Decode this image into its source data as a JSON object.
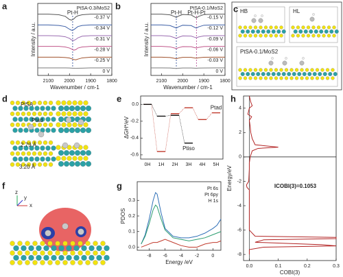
{
  "panel_labels": [
    "a",
    "b",
    "c",
    "d",
    "e",
    "f",
    "g",
    "h"
  ],
  "chart_data": [
    {
      "type": "line",
      "title": "PtSA-0.3/MoS2",
      "xlabel": "Wavenumber / cm-1",
      "ylabel": "Intensity / a.u.",
      "xlim": [
        2150,
        1800
      ],
      "xticks": [
        2100,
        2000,
        1900,
        1800
      ],
      "ylim": [
        0.3,
        7.0
      ],
      "annotations": [
        {
          "text": "Pt-H",
          "x": 1985
        }
      ],
      "x": [
        2150,
        2100,
        2050,
        2020,
        2000,
        1990,
        1980,
        1970,
        1960,
        1940,
        1900,
        1850,
        1800
      ],
      "series": [
        {
          "name": "-0.37 V",
          "color": "#555555",
          "values": [
            6.0,
            6.0,
            5.95,
            5.8,
            5.5,
            5.45,
            5.55,
            5.75,
            5.85,
            5.95,
            6.0,
            6.0,
            6.0
          ]
        },
        {
          "name": "-0.34 V",
          "color": "#3d5fa6",
          "values": [
            5.0,
            5.0,
            4.95,
            4.85,
            4.6,
            4.5,
            4.55,
            4.7,
            4.85,
            4.95,
            5.0,
            5.0,
            5.0
          ]
        },
        {
          "name": "-0.31 V",
          "color": "#9a6bb0",
          "values": [
            4.0,
            4.0,
            3.98,
            3.9,
            3.75,
            3.6,
            3.55,
            3.65,
            3.8,
            3.95,
            4.0,
            4.0,
            4.0
          ]
        },
        {
          "name": "-0.28 V",
          "color": "#c0568a",
          "values": [
            3.0,
            3.0,
            3.0,
            2.95,
            2.85,
            2.75,
            2.65,
            2.7,
            2.85,
            2.95,
            3.0,
            3.0,
            3.0
          ]
        },
        {
          "name": "-0.25 V",
          "color": "#a0522d",
          "values": [
            2.0,
            2.0,
            2.0,
            1.97,
            1.92,
            1.85,
            1.78,
            1.75,
            1.82,
            1.93,
            2.0,
            2.0,
            2.0
          ]
        },
        {
          "name": "0 V",
          "color": "#7a7a7a",
          "values": [
            1.0,
            1.0,
            1.0,
            1.0,
            0.99,
            0.98,
            0.97,
            0.96,
            0.97,
            0.98,
            1.0,
            1.0,
            1.0
          ]
        }
      ]
    },
    {
      "type": "line",
      "title": "PtSA-0.1/MoS2",
      "xlabel": "Wavenumber / cm-1",
      "ylabel": "Intensity / a.u.",
      "xlim": [
        2150,
        1800
      ],
      "xticks": [
        2100,
        2000,
        1900,
        1800
      ],
      "ylim": [
        0.3,
        7.0
      ],
      "annotations": [
        {
          "text": "Pt-H",
          "x": 2030
        },
        {
          "text": "Pt-H-Pt",
          "x": 1935
        }
      ],
      "x": [
        2150,
        2100,
        2060,
        2040,
        2030,
        2020,
        2000,
        1960,
        1945,
        1935,
        1925,
        1900,
        1850,
        1800
      ],
      "series": [
        {
          "name": "-0.15 V",
          "color": "#555555",
          "values": [
            6,
            6,
            5.94,
            5.79,
            5.7,
            5.82,
            5.97,
            5.93,
            5.755,
            5.65,
            5.79,
            5.965,
            6,
            6
          ]
        },
        {
          "name": "-0.12 V",
          "color": "#3d5fa6",
          "values": [
            5,
            5,
            4.94,
            4.79,
            4.7,
            4.82,
            4.97,
            4.94,
            4.79,
            4.7,
            4.82,
            4.97,
            5,
            5
          ]
        },
        {
          "name": "-0.09 V",
          "color": "#9a6bb0",
          "values": [
            4,
            4,
            3.95,
            3.825,
            3.75,
            3.85,
            3.975,
            3.96,
            3.86,
            3.8,
            3.88,
            3.98,
            4,
            4
          ]
        },
        {
          "name": "-0.06 V",
          "color": "#c0568a",
          "values": [
            3,
            3,
            2.96,
            2.86,
            2.8,
            2.88,
            2.98,
            2.97,
            2.895,
            2.85,
            2.91,
            2.985,
            3,
            3
          ]
        },
        {
          "name": "-0.03 V",
          "color": "#a0522d",
          "values": [
            2,
            2,
            1.97,
            1.895,
            1.85,
            1.91,
            1.985,
            1.98,
            1.93,
            1.9,
            1.94,
            1.99,
            2,
            2
          ]
        },
        {
          "name": "0 V",
          "color": "#7a7a7a",
          "values": [
            1,
            1,
            0.99,
            0.965,
            0.95,
            0.97,
            0.995,
            0.994,
            0.979,
            0.97,
            0.982,
            0.997,
            1,
            1
          ]
        }
      ]
    },
    {
      "type": "energy",
      "ylabel": "ΔGH*/eV",
      "categories": [
        "0H",
        "1H",
        "2H",
        "3H",
        "4H",
        "5H"
      ],
      "ylim": [
        -0.65,
        0.1
      ],
      "yticks": [
        {
          "value": 0,
          "label": "0.0"
        },
        -0.2,
        -0.4,
        -0.6
      ],
      "series": [
        {
          "name": "Ptad",
          "color": "#c0392b",
          "values": [
            0,
            -0.56,
            -0.11,
            -0.04,
            -0.18,
            -0.1
          ]
        },
        {
          "name": "Ptiso",
          "color": "#111111",
          "values": [
            0,
            -0.14,
            -0.13,
            -0.46,
            null,
            null
          ]
        }
      ]
    },
    {
      "type": "line",
      "xlabel": "Energy /eV",
      "ylabel": "PDOS",
      "legend": "upper right",
      "xlim": [
        -9.5,
        1
      ],
      "xticks": [
        -8,
        -6,
        -4,
        -2,
        0
      ],
      "ylim": [
        -0.02,
        0.42
      ],
      "yticks": [
        {
          "value": 0,
          "label": "0.0"
        },
        0.1,
        0.2,
        0.3
      ],
      "x": [
        -9,
        -8.5,
        -8,
        -7.5,
        -7.2,
        -7,
        -6.5,
        -6,
        -5,
        -4,
        -3,
        -2,
        -1,
        0,
        0.5,
        1
      ],
      "series": [
        {
          "name": "Pt 6s",
          "color": "#2e6fb7",
          "values": [
            0.02,
            0.08,
            0.18,
            0.3,
            0.35,
            0.34,
            0.22,
            0.12,
            0.07,
            0.06,
            0.06,
            0.07,
            0.09,
            0.12,
            0.14,
            0.18
          ]
        },
        {
          "name": "Pt 6py",
          "color": "#c0392b",
          "values": [
            0.0,
            0.01,
            0.02,
            0.03,
            0.03,
            0.03,
            0.04,
            0.05,
            0.03,
            0.01,
            0.0,
            0.0,
            0.02,
            0.03,
            0.03,
            0.04
          ]
        },
        {
          "name": "H 1s",
          "color": "#2a9d6f",
          "values": [
            0.02,
            0.07,
            0.15,
            0.24,
            0.27,
            0.26,
            0.18,
            0.11,
            0.06,
            0.05,
            0.04,
            0.05,
            0.06,
            0.08,
            0.09,
            0.1
          ]
        }
      ]
    },
    {
      "type": "cobi",
      "xlabel": "COBI(3)",
      "ylabel": "Energy/eV",
      "annotation": "ICOBI(3)=0.1053",
      "color": "#b22222",
      "xlim": [
        -0.02,
        0.3
      ],
      "xticks": [
        {
          "value": 0,
          "label": "0.0"
        },
        0.1,
        0.2,
        0.3
      ],
      "ylim": [
        -8.5,
        5
      ],
      "yticks": [
        -8,
        -6,
        -4,
        -2,
        0,
        2,
        4
      ],
      "x": [
        0,
        0.005,
        0.01,
        0,
        -0.005,
        0.008,
        0,
        0.003,
        0.005,
        0.01,
        0.02,
        0.1,
        0.03,
        0.01,
        0.003,
        0,
        0,
        -0.002,
        -0.01,
        -0.008,
        0,
        0,
        0,
        0,
        0,
        0.02,
        0.3,
        0.3,
        0.05,
        0.02,
        0.25,
        0.3,
        0.05,
        0,
        0
      ],
      "values": [
        5,
        4.5,
        4.2,
        4,
        3.5,
        3.3,
        3,
        2.5,
        2,
        1.5,
        1,
        0.8,
        0.7,
        0.5,
        0,
        -0.5,
        -1,
        -2,
        -2.3,
        -2.5,
        -2.7,
        -3,
        -4,
        -5,
        -6,
        -6.5,
        -6.6,
        -6.7,
        -6.8,
        -7,
        -7.2,
        -7.3,
        -7.4,
        -7.6,
        -8
      ]
    }
  ],
  "structures": {
    "c_labels": [
      "HB",
      "HL",
      "PtSA-0.1/MoS2"
    ],
    "d_labels": [
      "PtSA",
      "Ptad",
      "2.79 Å",
      "3.20 Å"
    ],
    "f_axes": [
      "x",
      "y",
      "z"
    ]
  }
}
